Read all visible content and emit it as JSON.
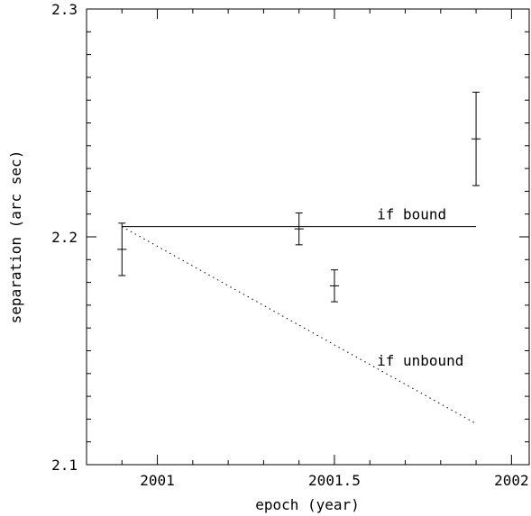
{
  "chart_data": {
    "type": "scatter",
    "title": "",
    "xlabel": "epoch (year)",
    "ylabel": "separation (arc sec)",
    "xlim": [
      2000.8,
      2002.05
    ],
    "ylim": [
      2.1,
      2.3
    ],
    "x_ticks": [
      {
        "value": 2001,
        "label": "2001"
      },
      {
        "value": 2001.5,
        "label": "2001.5"
      },
      {
        "value": 2002,
        "label": "2002"
      }
    ],
    "y_ticks": [
      {
        "value": 2.1,
        "label": "2.1"
      },
      {
        "value": 2.2,
        "label": "2.2"
      },
      {
        "value": 2.3,
        "label": "2.3"
      }
    ],
    "x_minor_step": 0.1,
    "y_minor_step": 0.01,
    "grid": false,
    "points": [
      {
        "x": 2000.9,
        "y": 2.1945,
        "yerr": 0.0115,
        "xerr": 0.013
      },
      {
        "x": 2001.4,
        "y": 2.2035,
        "yerr": 0.007,
        "xerr": 0.013
      },
      {
        "x": 2001.5,
        "y": 2.1785,
        "yerr": 0.007,
        "xerr": 0.013
      },
      {
        "x": 2001.9,
        "y": 2.243,
        "yerr": 0.0205,
        "xerr": 0.013
      }
    ],
    "lines": [
      {
        "label": "if bound",
        "style": "solid",
        "x": [
          2000.9,
          2001.9
        ],
        "y": [
          2.2045,
          2.2045
        ]
      },
      {
        "label": "if unbound",
        "style": "dotted",
        "x": [
          2000.9,
          2001.9
        ],
        "y": [
          2.2045,
          2.118
        ]
      }
    ],
    "annotations": [
      {
        "text": "if bound",
        "x": 2001.62,
        "y": 2.2078
      },
      {
        "text": "if unbound",
        "x": 2001.62,
        "y": 2.1435
      }
    ]
  }
}
